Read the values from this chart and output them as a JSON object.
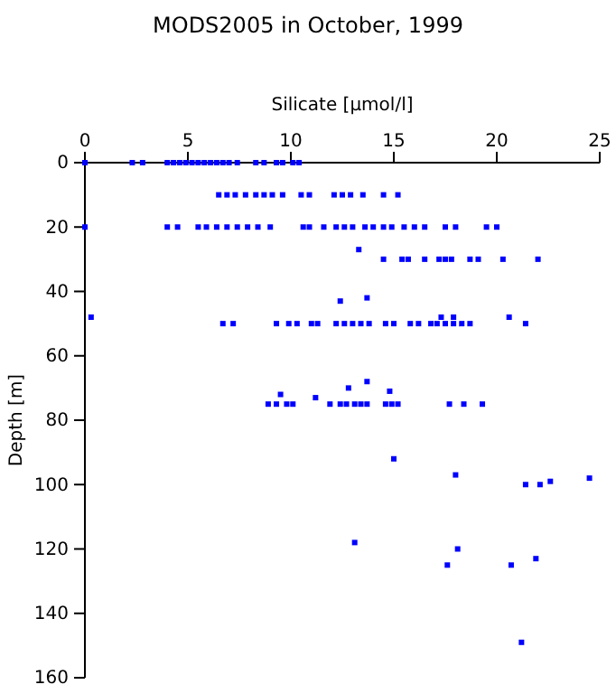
{
  "chart_data": {
    "type": "scatter",
    "title": "MODS2005 in October, 1999",
    "xlabel": "Silicate [µmol/l]",
    "ylabel": "Depth [m]",
    "x": [
      0,
      2.3,
      2.8,
      4,
      4.3,
      4.6,
      4.9,
      5.2,
      5.5,
      5.8,
      6.1,
      6.4,
      6.7,
      7,
      7.4,
      8.3,
      8.7,
      9.3,
      9.6,
      10.1,
      10.4,
      6.5,
      6.9,
      7.3,
      7.8,
      8.3,
      8.7,
      9.1,
      9.6,
      10.5,
      10.9,
      12.1,
      12.5,
      12.9,
      13.5,
      14.5,
      15.2,
      0,
      4,
      4.5,
      5.5,
      5.9,
      6.4,
      6.9,
      7.4,
      7.9,
      8.4,
      9,
      10.6,
      10.9,
      11.6,
      12.2,
      12.6,
      13,
      13.6,
      14,
      14.5,
      14.9,
      15.5,
      16,
      16.5,
      17.5,
      18,
      19.5,
      20,
      13.3,
      14.5,
      15.4,
      15.7,
      16.5,
      17.2,
      17.5,
      17.8,
      18.7,
      19.1,
      20.3,
      22,
      12.4,
      13.7,
      0.3,
      6.7,
      7.2,
      9.3,
      9.9,
      10.3,
      11,
      11.3,
      12.2,
      12.6,
      13,
      13.4,
      13.8,
      14.6,
      15,
      15.8,
      16.2,
      16.8,
      17.1,
      17.5,
      17.9,
      18.3,
      18.7,
      17.3,
      17.9,
      20.6,
      21.4,
      9.5,
      8.9,
      9.3,
      9.8,
      10.1,
      11.9,
      12.4,
      12.7,
      13.1,
      13.4,
      13.7,
      14.6,
      14.9,
      15.2,
      17.7,
      18.4,
      19.3,
      12.8,
      13.7,
      14.8,
      11.2,
      15,
      18,
      21.4,
      22.1,
      22.6,
      24.5,
      13.1,
      17.6,
      18.1,
      20.7,
      21.9,
      21.2
    ],
    "values": [
      0,
      0,
      0,
      0,
      0,
      0,
      0,
      0,
      0,
      0,
      0,
      0,
      0,
      0,
      0,
      0,
      0,
      0,
      0,
      0,
      0,
      10,
      10,
      10,
      10,
      10,
      10,
      10,
      10,
      10,
      10,
      10,
      10,
      10,
      10,
      10,
      10,
      20,
      20,
      20,
      20,
      20,
      20,
      20,
      20,
      20,
      20,
      20,
      20,
      20,
      20,
      20,
      20,
      20,
      20,
      20,
      20,
      20,
      20,
      20,
      20,
      20,
      20,
      20,
      20,
      27,
      30,
      30,
      30,
      30,
      30,
      30,
      30,
      30,
      30,
      30,
      30,
      43,
      42,
      48,
      50,
      50,
      50,
      50,
      50,
      50,
      50,
      50,
      50,
      50,
      50,
      50,
      50,
      50,
      50,
      50,
      50,
      50,
      50,
      50,
      50,
      50,
      48,
      48,
      48,
      50,
      72,
      75,
      75,
      75,
      75,
      75,
      75,
      75,
      75,
      75,
      75,
      75,
      75,
      75,
      75,
      75,
      75,
      70,
      68,
      71,
      73,
      92,
      97,
      100,
      100,
      99,
      98,
      118,
      125,
      120,
      125,
      123,
      149
    ],
    "color": "#0000ff",
    "marker": "square",
    "grid": false,
    "xlim": [
      0,
      25
    ],
    "xticks": [
      0,
      5,
      10,
      15,
      20,
      25
    ],
    "ylim": [
      160,
      0
    ],
    "yticks": [
      0,
      20,
      40,
      60,
      80,
      100,
      120,
      140,
      160
    ]
  }
}
